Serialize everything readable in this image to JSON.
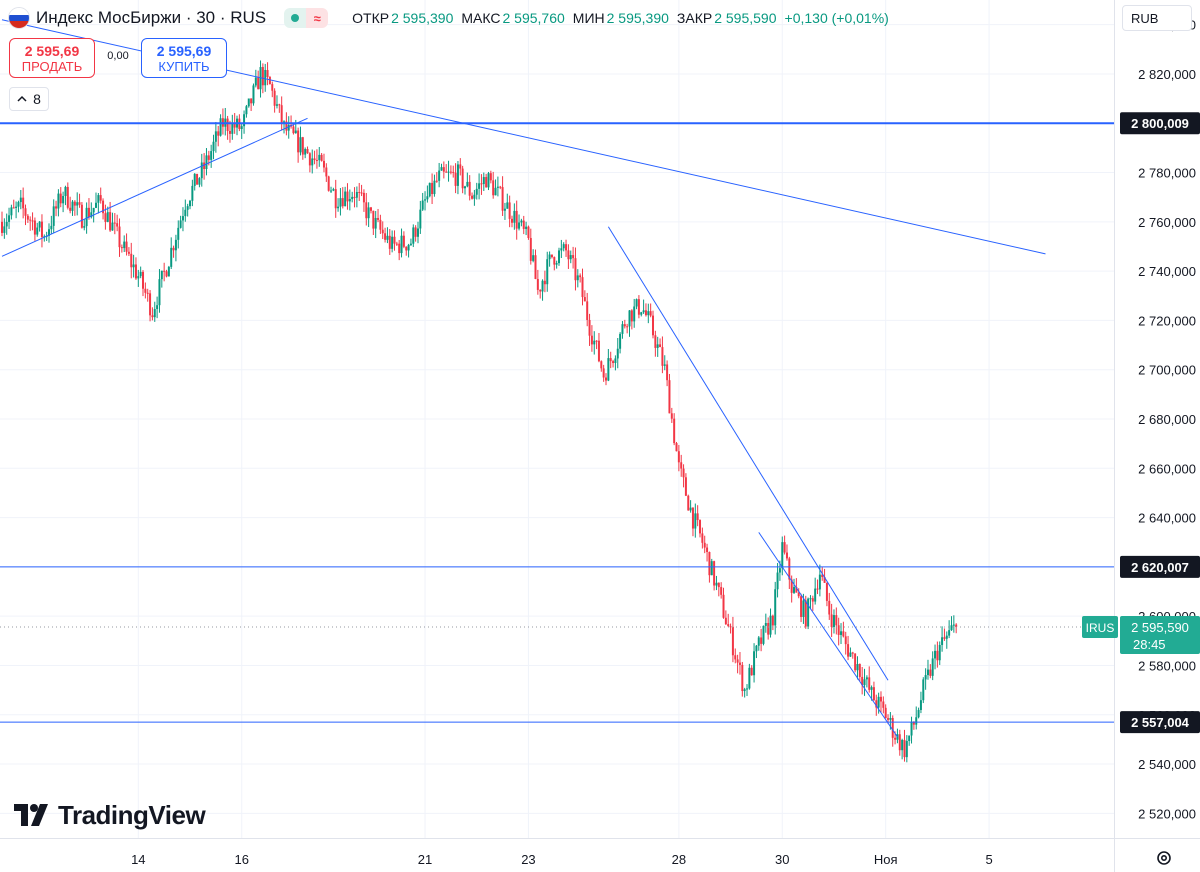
{
  "header": {
    "symbol": "Индекс МосБиржи · 30 · RUS",
    "flag_colors": [
      "#ffffff",
      "#1f4fd1",
      "#d52b1e"
    ],
    "market_open_icon": "green-dot-icon",
    "market_icon_symbol": "≈",
    "ohlc": [
      {
        "label": "ОТКР",
        "value": "2 595,390"
      },
      {
        "label": "МАКС",
        "value": "2 595,760"
      },
      {
        "label": "МИН",
        "value": "2 595,390"
      },
      {
        "label": "ЗАКР",
        "value": "2 595,590"
      }
    ],
    "change": "+0,130 (+0,01%)"
  },
  "trade": {
    "sell_price": "2 595,69",
    "sell_label": "ПРОДАТЬ",
    "buy_price": "2 595,69",
    "buy_label": "КУПИТЬ",
    "spread": "0,00"
  },
  "interval_count": "8",
  "currency": "RUB",
  "logo_text": "TradingView",
  "colors": {
    "up": "#089981",
    "down": "#f23645",
    "line": "#2962ff",
    "grid": "#f0f3fa",
    "axis_text": "#131722",
    "badge_dark": "#131722",
    "badge_price": "#22ab94"
  },
  "chart_data": {
    "type": "candlestick",
    "title": "",
    "xlabel": "",
    "ylabel": "",
    "ylim": [
      2510000,
      2850000
    ],
    "y_ticks": [
      2520000,
      2540000,
      2560000,
      2580000,
      2600000,
      2620000,
      2640000,
      2660000,
      2680000,
      2700000,
      2720000,
      2740000,
      2760000,
      2780000,
      2800000,
      2820000,
      2840000
    ],
    "y_tick_labels": [
      "2 520,000",
      "2 540,000",
      "2 560,000",
      "2 580,000",
      "2 600,000",
      "2 620,000",
      "2 640,000",
      "2 660,000",
      "2 680,000",
      "2 700,000",
      "2 720,000",
      "2 740,000",
      "2 760,000",
      "2 780,000",
      "2 800,000",
      "2 820,000",
      "2 840,000"
    ],
    "x_ticks": [
      "14",
      "16",
      "21",
      "23",
      "28",
      "30",
      "Ноя",
      "5"
    ],
    "x_tick_index": [
      44,
      88,
      166,
      210,
      274,
      318,
      362,
      406
    ],
    "x_range_index": [
      -14,
      460
    ],
    "current_price": 2595590,
    "current_price_label": "2 595,590",
    "current_symbol": "IRUS",
    "countdown": "28:45",
    "horizontal_levels": [
      {
        "value": 2800009,
        "label": "2 800,009",
        "width": 2
      },
      {
        "value": 2620007,
        "label": "2 620,007",
        "width": 1
      },
      {
        "value": 2557004,
        "label": "2 557,004",
        "width": 1
      }
    ],
    "trend_lines": [
      {
        "from": [
          -14,
          2842000
        ],
        "to": [
          430,
          2747000
        ]
      },
      {
        "from": [
          -14,
          2746000
        ],
        "to": [
          116,
          2802000
        ]
      },
      {
        "from": [
          244,
          2758000
        ],
        "to": [
          363,
          2574000
        ]
      },
      {
        "from": [
          308,
          2634000
        ],
        "to": [
          367,
          2551000
        ]
      }
    ],
    "anchors": [
      [
        -14,
        2760000
      ],
      [
        -6,
        2766000
      ],
      [
        4,
        2754000
      ],
      [
        12,
        2772000
      ],
      [
        20,
        2762000
      ],
      [
        28,
        2768000
      ],
      [
        36,
        2752000
      ],
      [
        44,
        2738000
      ],
      [
        50,
        2724000
      ],
      [
        56,
        2742000
      ],
      [
        64,
        2768000
      ],
      [
        72,
        2782000
      ],
      [
        80,
        2800000
      ],
      [
        88,
        2798000
      ],
      [
        96,
        2820000
      ],
      [
        100,
        2815000
      ],
      [
        106,
        2798000
      ],
      [
        114,
        2790000
      ],
      [
        122,
        2782000
      ],
      [
        128,
        2770000
      ],
      [
        136,
        2772000
      ],
      [
        144,
        2760000
      ],
      [
        152,
        2750000
      ],
      [
        160,
        2752000
      ],
      [
        166,
        2768000
      ],
      [
        172,
        2778000
      ],
      [
        180,
        2779000
      ],
      [
        186,
        2771000
      ],
      [
        192,
        2778000
      ],
      [
        198,
        2770000
      ],
      [
        204,
        2762000
      ],
      [
        210,
        2752000
      ],
      [
        214,
        2732000
      ],
      [
        220,
        2746000
      ],
      [
        226,
        2748000
      ],
      [
        232,
        2734000
      ],
      [
        236,
        2718000
      ],
      [
        242,
        2698000
      ],
      [
        246,
        2706000
      ],
      [
        252,
        2722000
      ],
      [
        258,
        2726000
      ],
      [
        262,
        2718000
      ],
      [
        268,
        2700000
      ],
      [
        274,
        2660000
      ],
      [
        280,
        2640000
      ],
      [
        284,
        2630000
      ],
      [
        290,
        2612000
      ],
      [
        296,
        2592000
      ],
      [
        302,
        2570000
      ],
      [
        308,
        2588000
      ],
      [
        314,
        2600000
      ],
      [
        318,
        2628000
      ],
      [
        322,
        2612000
      ],
      [
        328,
        2600000
      ],
      [
        334,
        2618000
      ],
      [
        338,
        2602000
      ],
      [
        344,
        2590000
      ],
      [
        350,
        2580000
      ],
      [
        356,
        2568000
      ],
      [
        362,
        2560000
      ],
      [
        366,
        2552000
      ],
      [
        370,
        2546000
      ],
      [
        374,
        2556000
      ],
      [
        378,
        2570000
      ],
      [
        384,
        2586000
      ],
      [
        390,
        2594000
      ],
      [
        392,
        2595600
      ]
    ]
  }
}
